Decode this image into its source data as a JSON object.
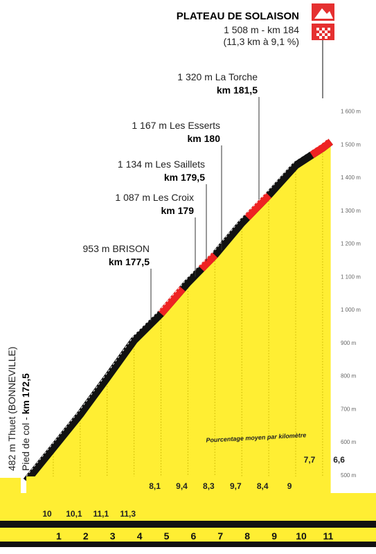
{
  "chart_data": {
    "type": "area",
    "title": "PLATEAU DE SOLAISON",
    "summit": {
      "line1": "1 508 m - km 184",
      "line2": "(11,3 km à 9,1 %)"
    },
    "start_label": {
      "line1": "482 m Thuet (BONNEVILLE)",
      "line2_plain": "Pied de col - ",
      "line2_bold": "km 172,5"
    },
    "gradient_caption": "Pourcentage moyen par kilomètre",
    "km_ticks": [
      "1",
      "2",
      "3",
      "4",
      "5",
      "6",
      "7",
      "8",
      "9",
      "10",
      "11"
    ],
    "gradients_bottom": [
      "10",
      "10,1",
      "11,1",
      "11,3",
      "8,1",
      "9,4",
      "8,3",
      "9,7",
      "8,4",
      "9",
      "7,7",
      "6,6"
    ],
    "y_ticks": [
      "500 m",
      "600 m",
      "700 m",
      "800 m",
      "900 m",
      "1 000 m",
      "1 100 m",
      "1 200 m",
      "1 300 m",
      "1 400 m",
      "1 500 m",
      "1 600 m"
    ],
    "ylim": [
      500,
      1600
    ],
    "xlim": [
      0,
      11.3
    ],
    "profile": [
      {
        "km": 0,
        "alt": 482
      },
      {
        "km": 1,
        "alt": 582
      },
      {
        "km": 2,
        "alt": 683
      },
      {
        "km": 3,
        "alt": 794
      },
      {
        "km": 4,
        "alt": 907
      },
      {
        "km": 5,
        "alt": 988
      },
      {
        "km": 6,
        "alt": 1082
      },
      {
        "km": 7,
        "alt": 1165
      },
      {
        "km": 8,
        "alt": 1262
      },
      {
        "km": 9,
        "alt": 1346
      },
      {
        "km": 10,
        "alt": 1436
      },
      {
        "km": 11,
        "alt": 1489
      },
      {
        "km": 11.3,
        "alt": 1508
      }
    ],
    "annotations": [
      {
        "name": "953 m BRISON",
        "km_label": "km 177,5",
        "km": 5.0,
        "alt": 953
      },
      {
        "name": "1 087 m Les Croix",
        "km_label": "km 179",
        "km": 6.5,
        "alt": 1087
      },
      {
        "name": "1 134 m Les Saillets",
        "km_label": "km 179,5",
        "km": 7.0,
        "alt": 1134
      },
      {
        "name": "1 167 m Les Esserts",
        "km_label": "km 180",
        "km": 7.5,
        "alt": 1167
      },
      {
        "name": "1 320 m La Torche",
        "km_label": "km 181,5",
        "km": 9.0,
        "alt": 1320
      }
    ],
    "red_segments": [
      [
        5.0,
        5.8
      ],
      [
        6.5,
        7.0
      ],
      [
        8.2,
        9.0
      ],
      [
        10.6,
        11.3
      ]
    ],
    "colors": {
      "fill": "#ffee33",
      "road": "#111111",
      "highlight": "#ee2222",
      "base": "#111111",
      "km_band": "#ffee33"
    }
  }
}
